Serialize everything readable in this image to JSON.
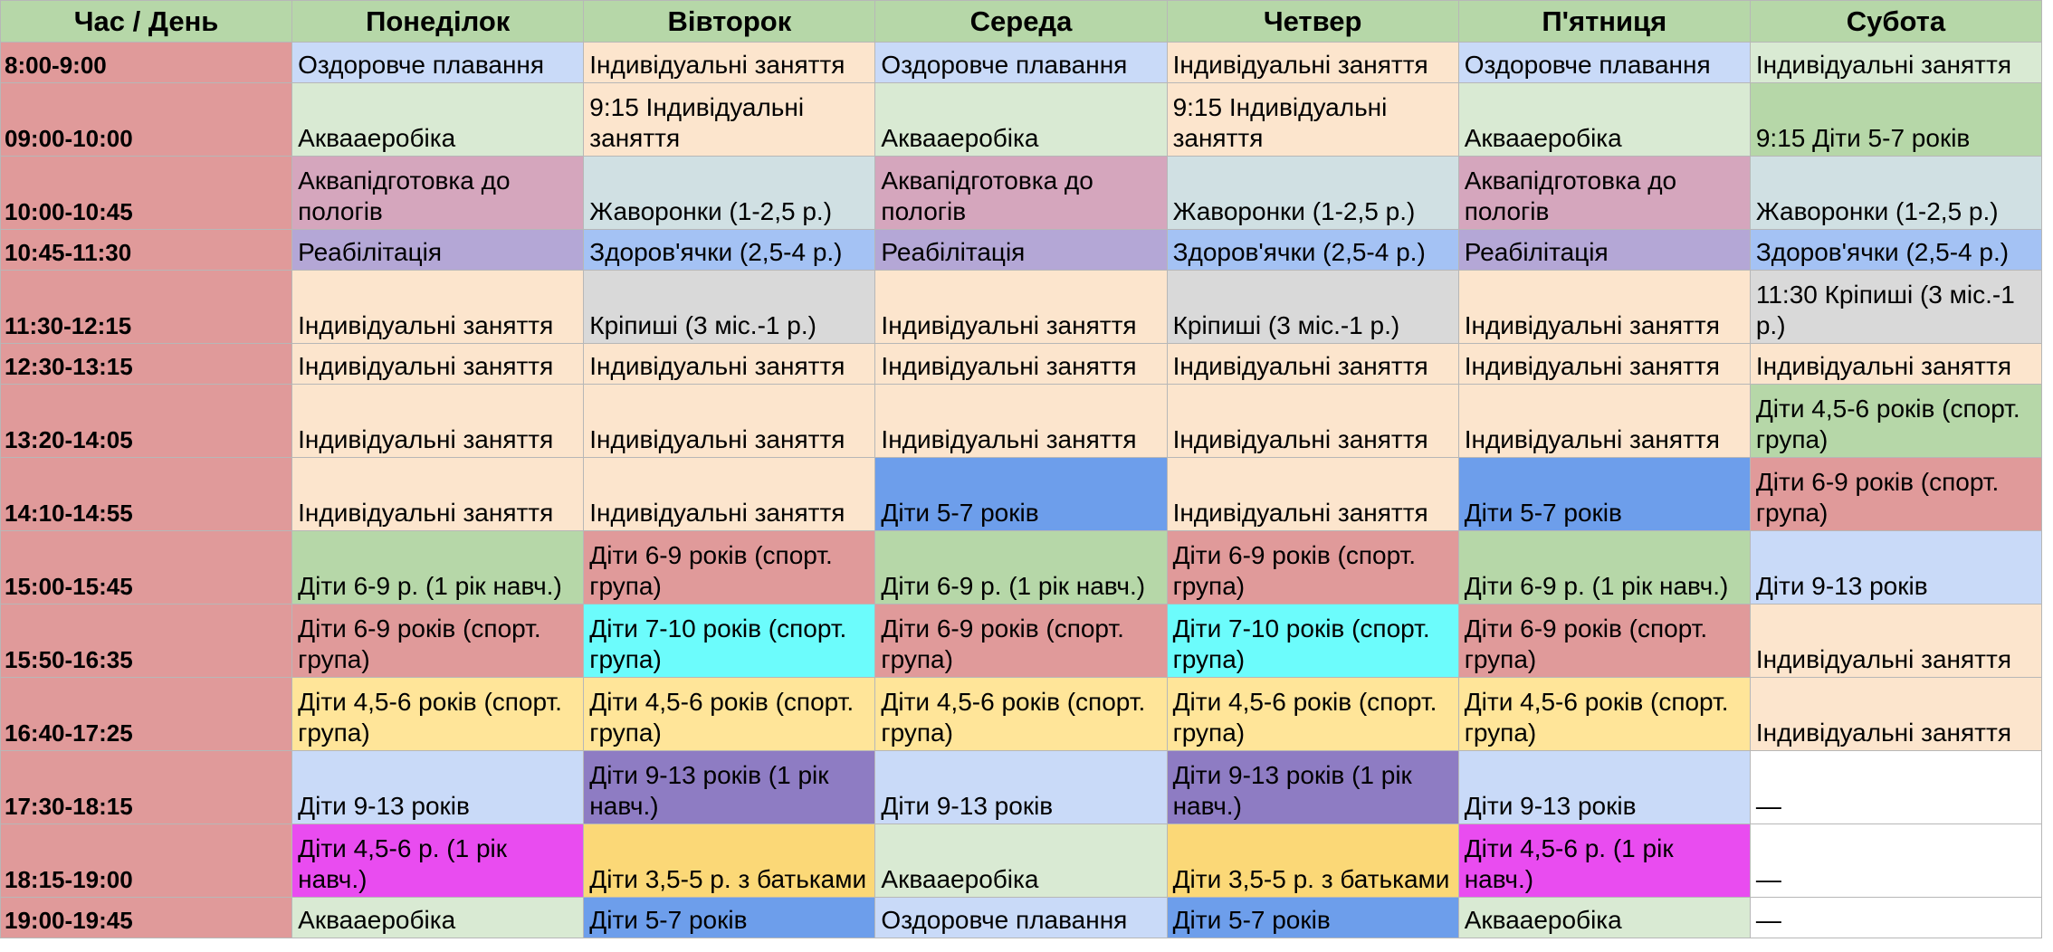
{
  "header": [
    "Час / День",
    "Понеділок",
    "Вівторок",
    "Середа",
    "Четвер",
    "П'ятниця",
    "Субота"
  ],
  "rows": [
    {
      "time": "8:00-9:00",
      "cells": [
        "Оздоровче плавання",
        "Індивідуальні заняття",
        "Оздоровче плавання",
        "Індивідуальні заняття",
        "Оздоровче плавання",
        "Індивідуальні заняття"
      ]
    },
    {
      "time": "09:00-10:00",
      "cells": [
        "Аквааеробіка",
        "9:15 Індивідуальні заняття",
        "Аквааеробіка",
        "9:15 Індивідуальні заняття",
        "Аквааеробіка",
        "9:15 Діти 5-7 років"
      ]
    },
    {
      "time": "10:00-10:45",
      "cells": [
        "Аквапідготовка до пологів",
        "Жаворонки (1-2,5 р.)",
        "Аквапідготовка до пологів",
        "Жаворонки (1-2,5 р.)",
        "Аквапідготовка до пологів",
        "Жаворонки (1-2,5 р.)"
      ]
    },
    {
      "time": "10:45-11:30",
      "cells": [
        "Реабілітація",
        "Здоров'ячки (2,5-4 р.)",
        "Реабілітація",
        "Здоров'ячки (2,5-4 р.)",
        "Реабілітація",
        "Здоров'ячки (2,5-4 р.)"
      ]
    },
    {
      "time": "11:30-12:15",
      "cells": [
        "Індивідуальні заняття",
        "Кріпиші (3 міс.-1 р.)",
        "Індивідуальні заняття",
        "Кріпиші (3 міс.-1 р.)",
        "Індивідуальні заняття",
        "11:30 Кріпиші (3 міс.-1 р.)"
      ]
    },
    {
      "time": "12:30-13:15",
      "cells": [
        "Індивідуальні заняття",
        "Індивідуальні заняття",
        "Індивідуальні заняття",
        "Індивідуальні заняття",
        "Індивідуальні заняття",
        "Індивідуальні заняття"
      ]
    },
    {
      "time": "13:20-14:05",
      "cells": [
        "Індивідуальні заняття",
        "Індивідуальні заняття",
        "Індивідуальні заняття",
        "Індивідуальні заняття",
        "Індивідуальні заняття",
        "Діти 4,5-6 років (спорт. група)"
      ]
    },
    {
      "time": "14:10-14:55",
      "cells": [
        "Індивідуальні заняття",
        "Індивідуальні заняття",
        "Діти 5-7 років",
        "Індивідуальні заняття",
        "Діти 5-7 років",
        "Діти 6-9 років (спорт. група)"
      ]
    },
    {
      "time": "15:00-15:45",
      "cells": [
        "Діти 6-9 р. (1 рік навч.)",
        "Діти 6-9 років (спорт. група)",
        "Діти 6-9 р. (1 рік навч.)",
        "Діти 6-9 років (спорт. група)",
        "Діти 6-9 р. (1 рік навч.)",
        "Діти 9-13 років"
      ]
    },
    {
      "time": "15:50-16:35",
      "cells": [
        "Діти 6-9 років (спорт. група)",
        "Діти 7-10 років (спорт. група)",
        "Діти 6-9 років (спорт. група)",
        "Діти 7-10 років (спорт. група)",
        "Діти 6-9 років (спорт. група)",
        "Індивідуальні заняття"
      ]
    },
    {
      "time": "16:40-17:25",
      "cells": [
        "Діти 4,5-6 років (спорт. група)",
        "Діти 4,5-6 років (спорт. група)",
        "Діти 4,5-6 років (спорт. група)",
        "Діти 4,5-6 років (спорт. група)",
        "Діти 4,5-6 років (спорт. група)",
        "Індивідуальні заняття"
      ]
    },
    {
      "time": "17:30-18:15",
      "cells": [
        "Діти 9-13 років",
        "Діти 9-13 років (1 рік навч.)",
        "Діти 9-13 років",
        "Діти 9-13 років (1 рік навч.)",
        "Діти 9-13 років",
        "—"
      ]
    },
    {
      "time": "18:15-19:00",
      "cells": [
        "Діти 4,5-6 р. (1 рік навч.)",
        "Діти 3,5-5 р. з батьками",
        "Аквааеробіка",
        "Діти 3,5-5 р. з батьками",
        "Діти 4,5-6 р. (1 рік навч.)",
        "—"
      ]
    },
    {
      "time": "19:00-19:45",
      "cells": [
        "Аквааеробіка",
        "Діти 5-7 років",
        "Оздоровче плавання",
        "Діти 5-7 років",
        "Аквааеробіка",
        "—"
      ]
    }
  ]
}
